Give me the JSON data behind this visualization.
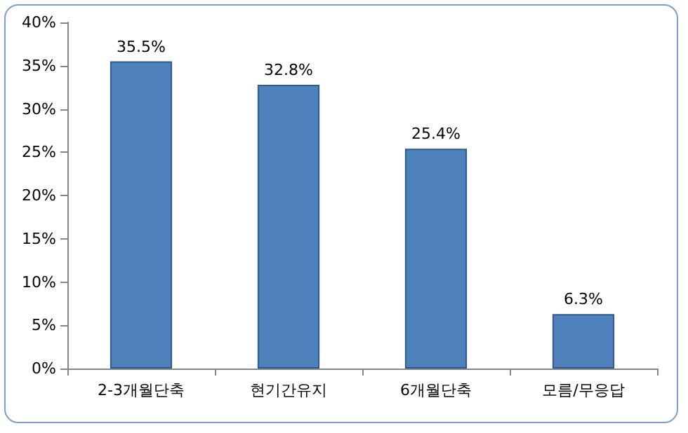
{
  "chart_data": {
    "type": "bar",
    "categories": [
      "2-3개월단축",
      "현기간유지",
      "6개월단축",
      "모름/무응답"
    ],
    "values": [
      35.5,
      32.8,
      25.4,
      6.3
    ],
    "value_labels": [
      "35.5%",
      "32.8%",
      "25.4%",
      "6.3%"
    ],
    "color": "#4f81bd",
    "ylim": [
      0,
      40
    ],
    "yticks": [
      {
        "value": 0,
        "label": "0%"
      },
      {
        "value": 5,
        "label": "5%"
      },
      {
        "value": 10,
        "label": "10%"
      },
      {
        "value": 15,
        "label": "15%"
      },
      {
        "value": 20,
        "label": "20%"
      },
      {
        "value": 25,
        "label": "25%"
      },
      {
        "value": 30,
        "label": "30%"
      },
      {
        "value": 35,
        "label": "35%"
      },
      {
        "value": 40,
        "label": "40%"
      }
    ],
    "grid": false
  }
}
